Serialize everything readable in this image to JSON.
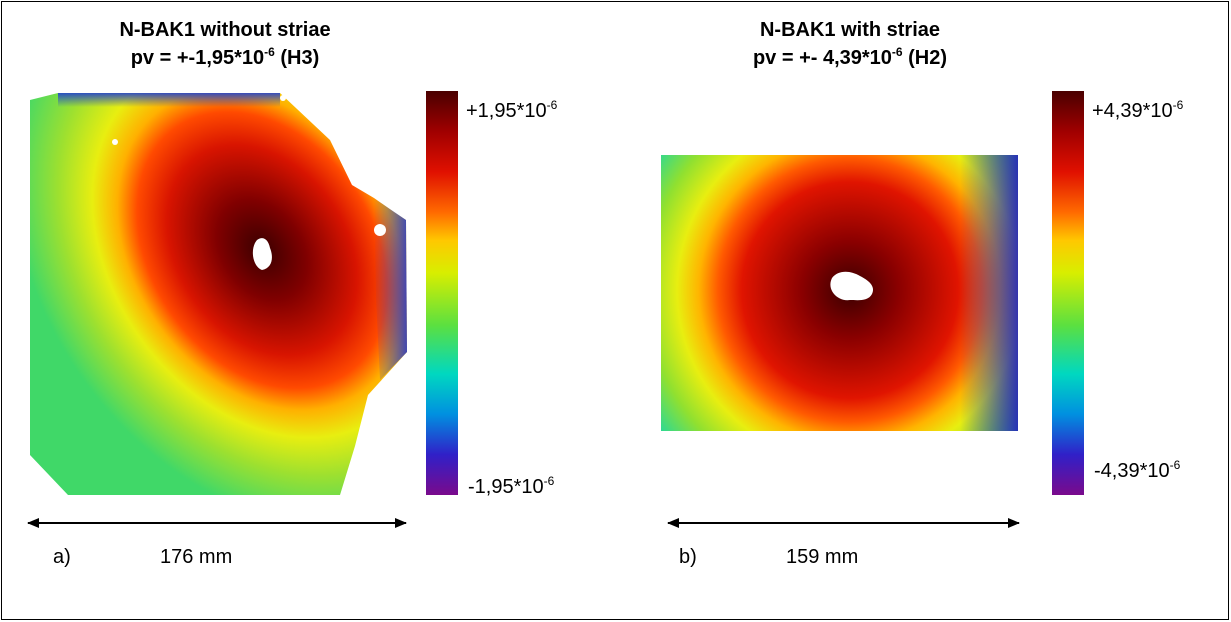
{
  "panel_a": {
    "title_line1": "N-BAK1 without striae",
    "title_line2_prefix": "pv = +-1,95*10",
    "title_line2_exp": "-6",
    "title_line2_suffix": " (H3)",
    "scale_max_base": "+1,95*10",
    "scale_max_exp": "-6",
    "scale_min_base": "-1,95*10",
    "scale_min_exp": "-6",
    "letter": "a)",
    "dimension": "176 mm"
  },
  "panel_b": {
    "title_line1": "N-BAK1 with striae",
    "title_line2_prefix": "pv = +- 4,39*10",
    "title_line2_exp": "-6",
    "title_line2_suffix": " (H2)",
    "scale_max_base": "+4,39*10",
    "scale_max_exp": "-6",
    "scale_min_base": "-4,39*10",
    "scale_min_exp": "-6",
    "letter": "b)",
    "dimension": "159 mm"
  },
  "colormap": {
    "stops": [
      "#7a0a8c",
      "#3020c8",
      "#0090e0",
      "#00d8c0",
      "#5be040",
      "#d8ee00",
      "#ffc800",
      "#ff6a00",
      "#e01000",
      "#a00000",
      "#4a0000"
    ]
  }
}
